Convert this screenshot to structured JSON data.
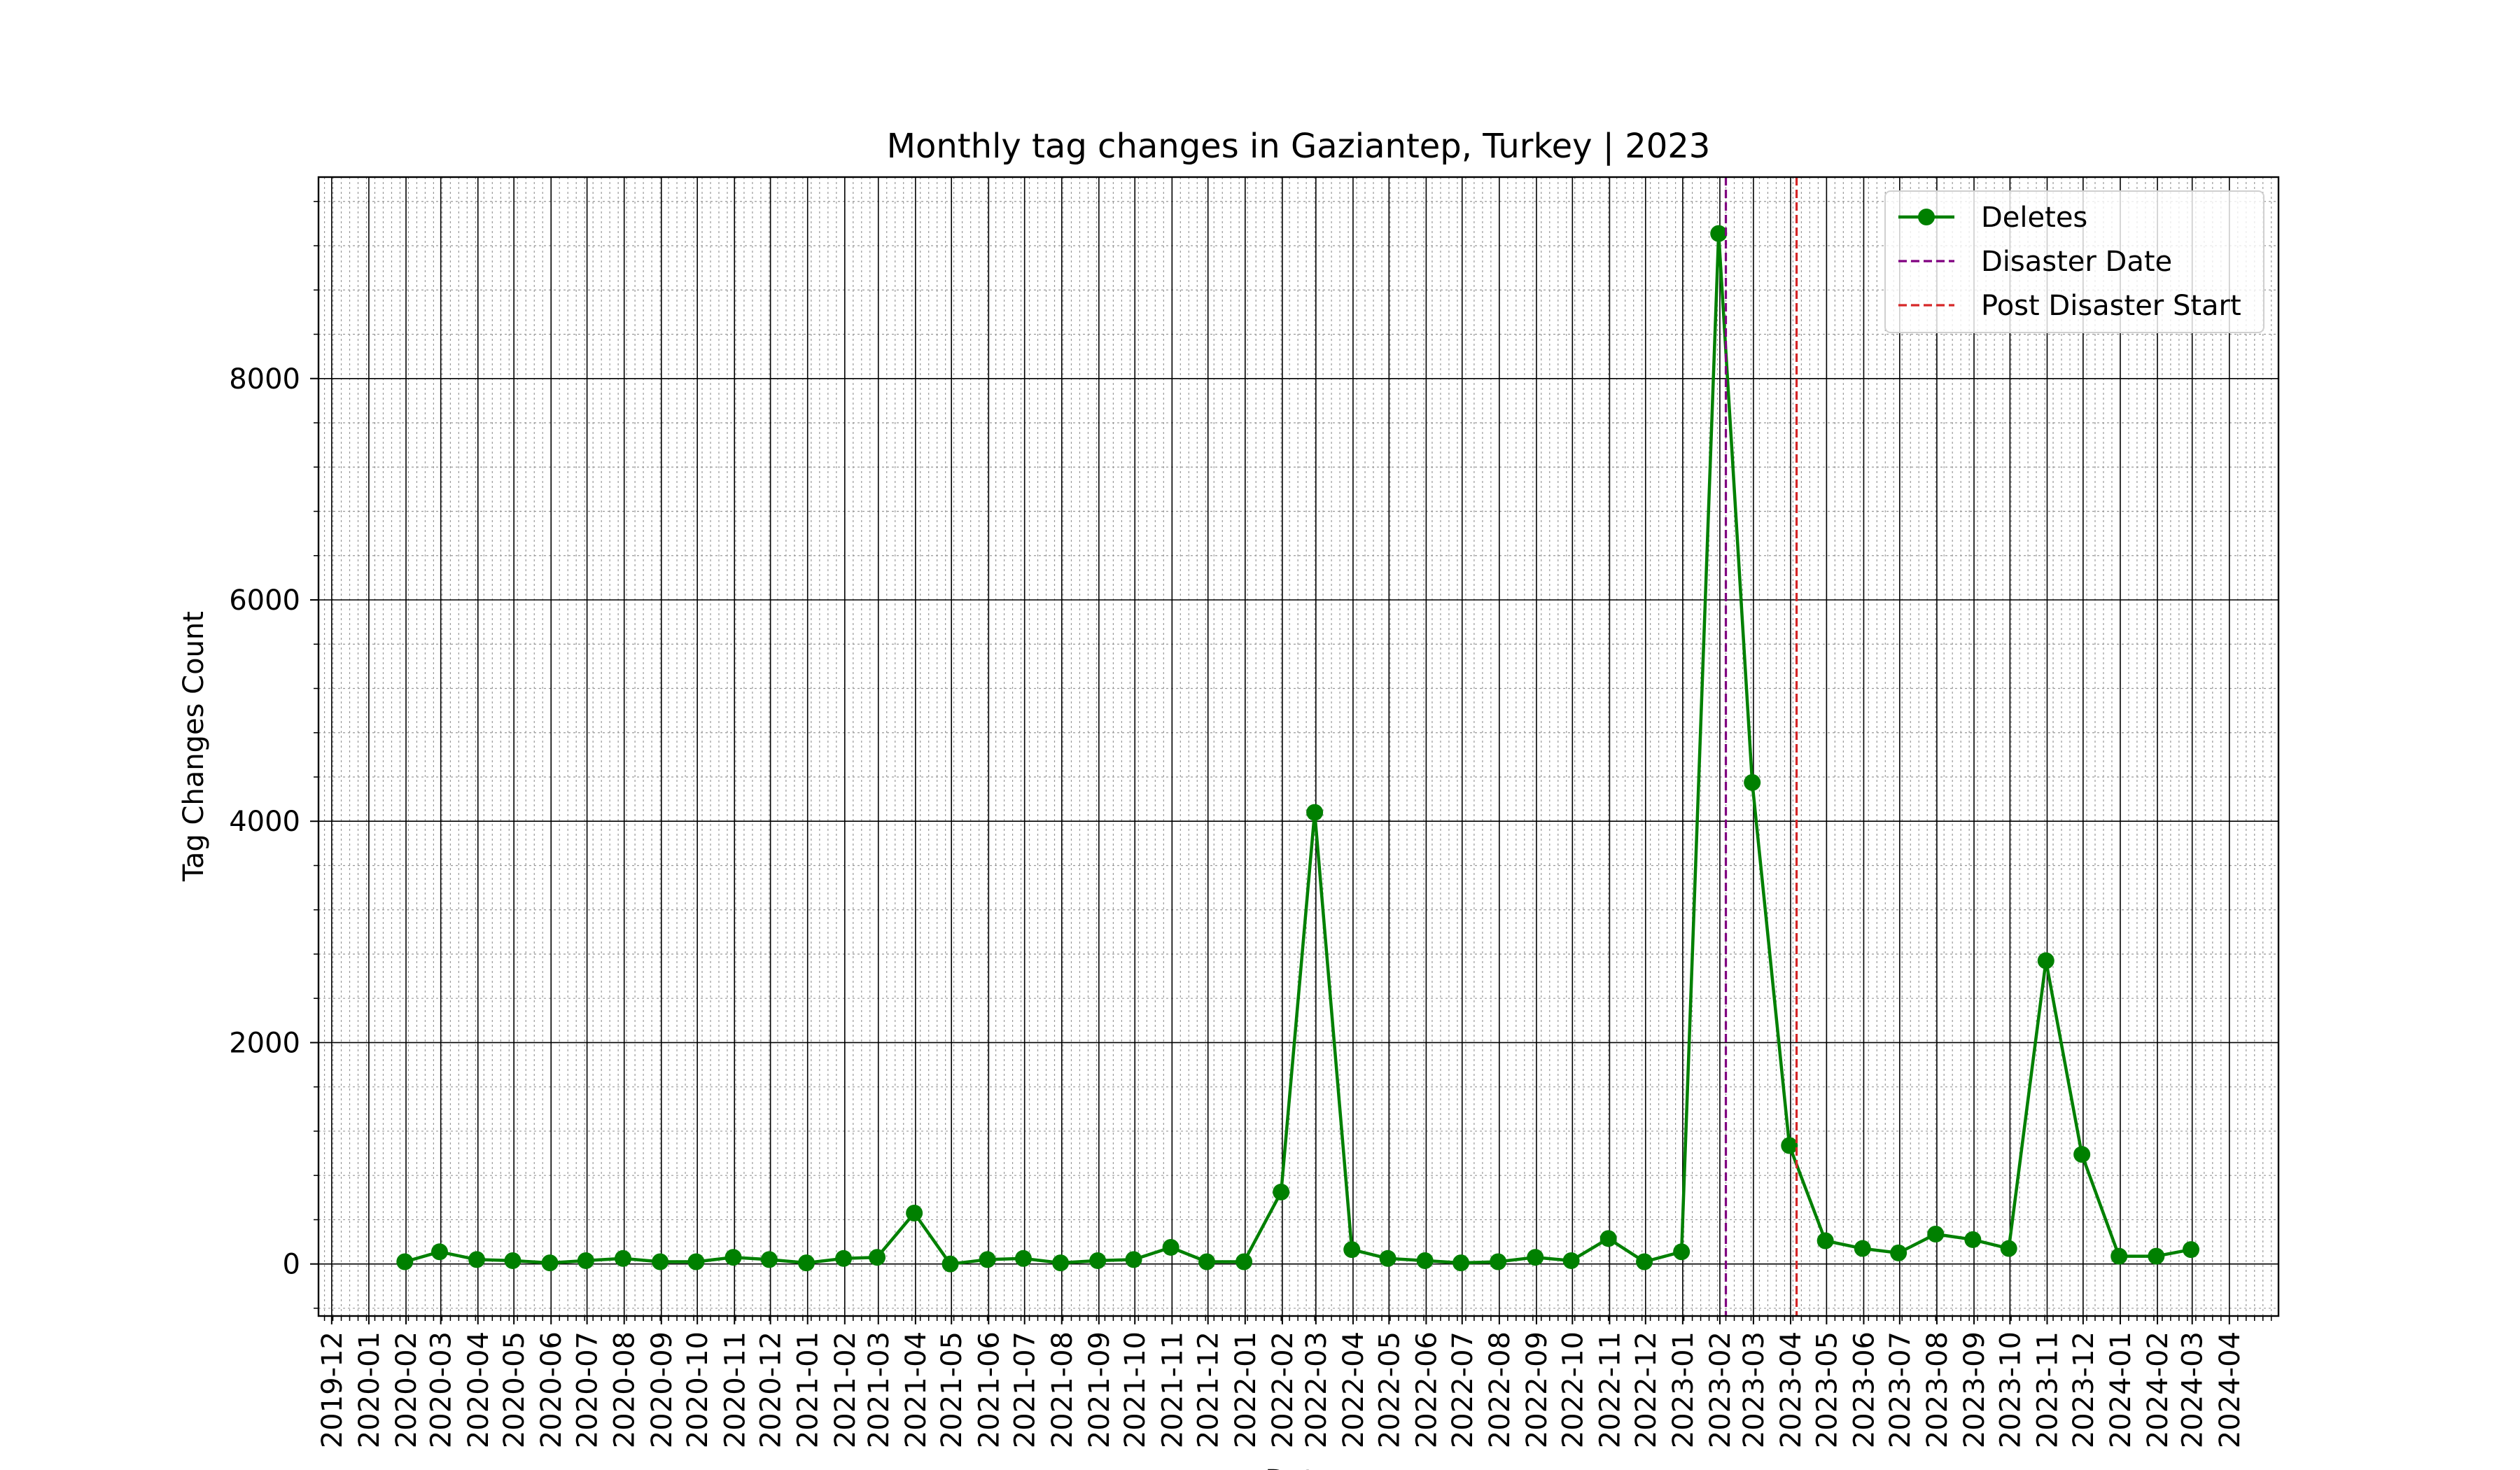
{
  "chart_data": {
    "type": "line",
    "title": "Monthly tag changes in Gaziantep, Turkey | 2023",
    "xlabel": "Date",
    "ylabel": "Tag Changes Count",
    "xlim": [
      "2019-11-20",
      "2024-05-12"
    ],
    "ylim": [
      -470,
      9820
    ],
    "grid": true,
    "legend_position": "top-right",
    "x_ticks": [
      "2019-12",
      "2020-01",
      "2020-02",
      "2020-03",
      "2020-04",
      "2020-05",
      "2020-06",
      "2020-07",
      "2020-08",
      "2020-09",
      "2020-10",
      "2020-11",
      "2020-12",
      "2021-01",
      "2021-02",
      "2021-03",
      "2021-04",
      "2021-05",
      "2021-06",
      "2021-07",
      "2021-08",
      "2021-09",
      "2021-10",
      "2021-11",
      "2021-12",
      "2022-01",
      "2022-02",
      "2022-03",
      "2022-04",
      "2022-05",
      "2022-06",
      "2022-07",
      "2022-08",
      "2022-09",
      "2022-10",
      "2022-11",
      "2022-12",
      "2023-01",
      "2023-02",
      "2023-03",
      "2023-04",
      "2023-05",
      "2023-06",
      "2023-07",
      "2023-08",
      "2023-09",
      "2023-10",
      "2023-11",
      "2023-12",
      "2024-01",
      "2024-02",
      "2024-03",
      "2024-04"
    ],
    "y_ticks": [
      0,
      2000,
      4000,
      6000,
      8000
    ],
    "series": [
      {
        "name": "Deletes",
        "color": "#008000",
        "marker": "circle",
        "x": [
          "2020-01-31",
          "2020-02-29",
          "2020-03-31",
          "2020-04-30",
          "2020-05-31",
          "2020-06-30",
          "2020-07-31",
          "2020-08-31",
          "2020-09-30",
          "2020-10-31",
          "2020-11-30",
          "2020-12-31",
          "2021-01-31",
          "2021-02-28",
          "2021-03-31",
          "2021-04-30",
          "2021-05-31",
          "2021-06-30",
          "2021-07-31",
          "2021-08-31",
          "2021-09-30",
          "2021-10-31",
          "2021-11-30",
          "2021-12-31",
          "2022-01-31",
          "2022-02-28",
          "2022-03-31",
          "2022-04-30",
          "2022-05-31",
          "2022-06-30",
          "2022-07-31",
          "2022-08-31",
          "2022-09-30",
          "2022-10-31",
          "2022-11-30",
          "2022-12-31",
          "2023-01-31",
          "2023-02-28",
          "2023-03-31",
          "2023-04-30",
          "2023-05-31",
          "2023-06-30",
          "2023-07-31",
          "2023-08-31",
          "2023-09-30",
          "2023-10-31",
          "2023-11-30",
          "2023-12-31",
          "2024-01-31",
          "2024-02-29"
        ],
        "values": [
          20,
          110,
          40,
          30,
          10,
          30,
          50,
          20,
          20,
          60,
          40,
          10,
          50,
          60,
          460,
          0,
          40,
          50,
          10,
          30,
          40,
          150,
          20,
          20,
          650,
          4080,
          130,
          50,
          30,
          10,
          20,
          60,
          30,
          230,
          20,
          110,
          9310,
          4350,
          1070,
          210,
          140,
          100,
          270,
          220,
          140,
          2740,
          990,
          70,
          70,
          130
        ]
      }
    ],
    "vlines": [
      {
        "name": "Disaster Date",
        "x": "2023-02-06",
        "color": "#800080",
        "style": "dashed"
      },
      {
        "name": "Post Disaster Start",
        "x": "2023-04-06",
        "color": "#d62728",
        "style": "dashed"
      }
    ]
  }
}
